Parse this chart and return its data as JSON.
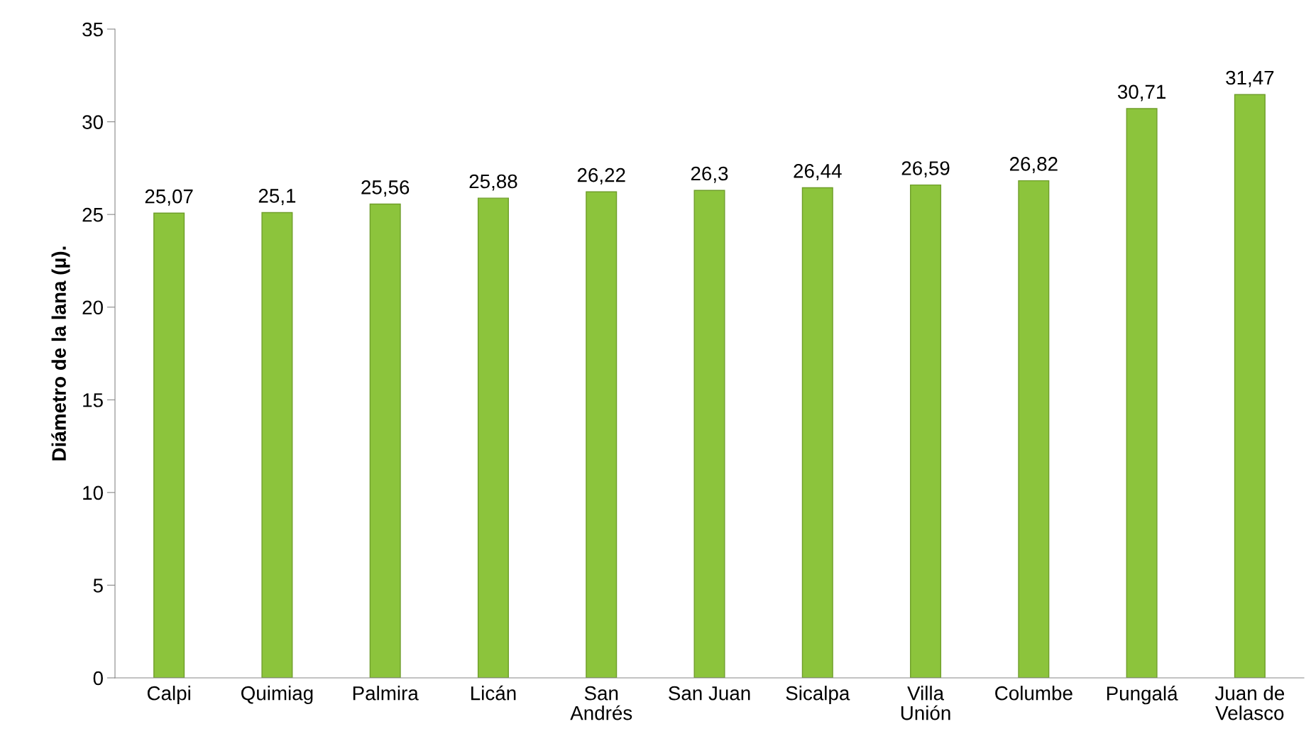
{
  "chart_data": {
    "type": "bar",
    "ylabel": "Diámetro de la lana (µ).",
    "categories": [
      "Calpi",
      "Quimiag",
      "Palmira",
      "Licán",
      "San\nAndrés",
      "San Juan",
      "Sicalpa",
      "Villa\nUnión",
      "Columbe",
      "Pungalá",
      "Juan de\nVelasco"
    ],
    "values": [
      25.07,
      25.1,
      25.56,
      25.88,
      26.22,
      26.3,
      26.44,
      26.59,
      26.82,
      30.71,
      31.47
    ],
    "value_labels": [
      "25,07",
      "25,1",
      "25,56",
      "25,88",
      "26,22",
      "26,3",
      "26,44",
      "26,59",
      "26,82",
      "30,71",
      "31,47"
    ],
    "color": "#8cc43c",
    "ylim": [
      0,
      35
    ],
    "yticks": [
      0,
      5,
      10,
      15,
      20,
      25,
      30,
      35
    ],
    "grid": false
  }
}
